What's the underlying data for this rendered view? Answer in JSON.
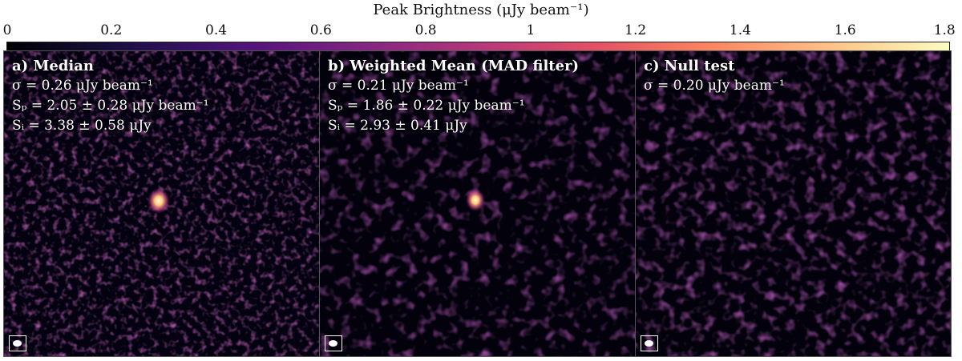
{
  "colorbar": {
    "title": "Peak Brightness (μJy beam⁻¹)",
    "ticks": [
      "0",
      "0.2",
      "0.4",
      "0.6",
      "0.8",
      "1",
      "1.2",
      "1.4",
      "1.6",
      "1.8"
    ],
    "range": [
      0,
      1.8
    ],
    "colormap": "magma"
  },
  "panels": [
    {
      "id": "a",
      "head": "a) Median",
      "lines": [
        "σ = 0.26 μJy beam⁻¹",
        "Sₚ = 2.05 ± 0.28 μJy beam⁻¹",
        "Sᵢ = 3.38 ± 0.58 μJy"
      ],
      "source": true,
      "noise_intensity": 0.62
    },
    {
      "id": "b",
      "head": "b) Weighted Mean (MAD filter)",
      "lines": [
        "σ = 0.21 μJy beam⁻¹",
        "Sₚ = 1.86 ± 0.22 μJy beam⁻¹",
        "Sᵢ = 2.93 ± 0.41 μJy"
      ],
      "source": true,
      "noise_intensity": 0.5
    },
    {
      "id": "c",
      "head": "c) Null test",
      "lines": [
        "σ = 0.20 μJy beam⁻¹"
      ],
      "source": false,
      "noise_intensity": 0.5
    }
  ]
}
